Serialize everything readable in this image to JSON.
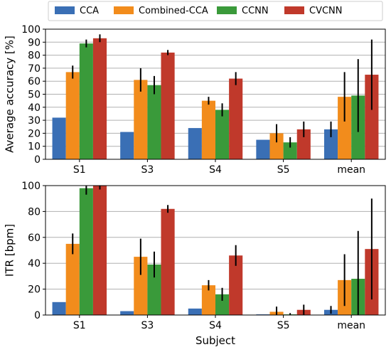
{
  "legend": {
    "placement": "top-center",
    "entries": [
      {
        "label": "CCA",
        "color": "#3a6fb5"
      },
      {
        "label": "Combined-CCA",
        "color": "#f28c1c"
      },
      {
        "label": "CCNN",
        "color": "#3a9a3a"
      },
      {
        "label": "CVCNN",
        "color": "#c0392b"
      }
    ]
  },
  "chart_data": [
    {
      "type": "bar",
      "ylabel": "Average accuracy [%]",
      "xlabel": "",
      "ylim": [
        0,
        100
      ],
      "yticks": [
        0,
        10,
        20,
        30,
        40,
        50,
        60,
        70,
        80,
        90,
        100
      ],
      "grid": true,
      "categories": [
        "S1",
        "S3",
        "S4",
        "S5",
        "mean"
      ],
      "series": [
        {
          "name": "CCA",
          "values": [
            32,
            21,
            24,
            15,
            23
          ],
          "errors": [
            0,
            0,
            0,
            0,
            6
          ]
        },
        {
          "name": "Combined-CCA",
          "values": [
            67,
            61,
            45,
            20,
            48
          ],
          "errors": [
            5,
            9,
            3,
            7,
            19
          ]
        },
        {
          "name": "CCNN",
          "values": [
            89,
            57,
            38,
            13,
            49
          ],
          "errors": [
            3,
            7,
            5,
            4,
            28
          ]
        },
        {
          "name": "CVCNN",
          "values": [
            93,
            82,
            62,
            23,
            65
          ],
          "errors": [
            3,
            2,
            5,
            6,
            27
          ]
        }
      ]
    },
    {
      "type": "bar",
      "ylabel": "ITR [bpm]",
      "xlabel": "Subject",
      "ylim": [
        0,
        100
      ],
      "yticks": [
        0,
        20,
        40,
        60,
        80,
        100
      ],
      "grid": true,
      "categories": [
        "S1",
        "S3",
        "S4",
        "S5",
        "mean"
      ],
      "series": [
        {
          "name": "CCA",
          "values": [
            10,
            3,
            5,
            0.5,
            4
          ],
          "errors": [
            0,
            0,
            0,
            0,
            3
          ]
        },
        {
          "name": "Combined-CCA",
          "values": [
            55,
            45,
            23,
            2.5,
            27
          ],
          "errors": [
            8,
            14,
            4,
            4,
            20
          ]
        },
        {
          "name": "CCNN",
          "values": [
            98,
            39,
            16,
            0.5,
            28
          ],
          "errors": [
            5,
            10,
            5,
            1,
            37
          ]
        },
        {
          "name": "CVCNN",
          "values": [
            100,
            82,
            46,
            4,
            51
          ],
          "errors": [
            3,
            3,
            8,
            4,
            39
          ]
        }
      ]
    }
  ]
}
